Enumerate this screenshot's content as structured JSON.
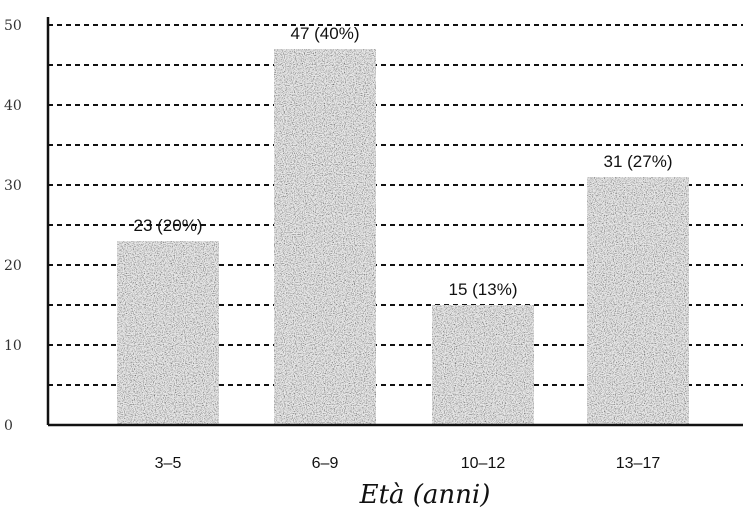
{
  "chart_data": {
    "type": "bar",
    "categories": [
      "3–5",
      "6–9",
      "10–12",
      "13–17"
    ],
    "values": [
      23,
      47,
      15,
      31
    ],
    "data_labels": [
      "23 (20%)",
      "47 (40%)",
      "15 (13%)",
      "31 (27%)"
    ],
    "xlabel": "Età (anni)",
    "ylabel": "",
    "ylim": [
      0,
      50
    ],
    "yticks": [
      0,
      10,
      20,
      30,
      40,
      50
    ],
    "ytick_labels": [
      "0",
      "10",
      "20",
      "30",
      "40",
      "50"
    ],
    "grid": true,
    "grid_step": 5,
    "bar_color": "#1a1a1a",
    "grid_color": "#111111"
  }
}
